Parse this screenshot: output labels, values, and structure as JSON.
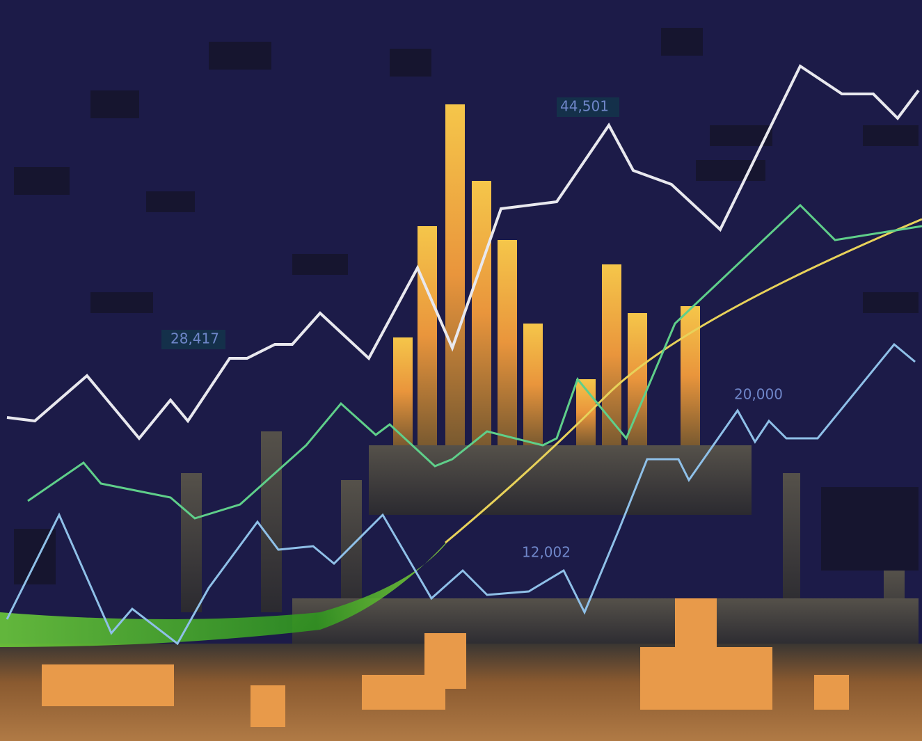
{
  "labels": [
    {
      "text": "44,501"
    },
    {
      "text": "28,417"
    },
    {
      "text": "20,000"
    },
    {
      "text": "12,002"
    }
  ]
}
